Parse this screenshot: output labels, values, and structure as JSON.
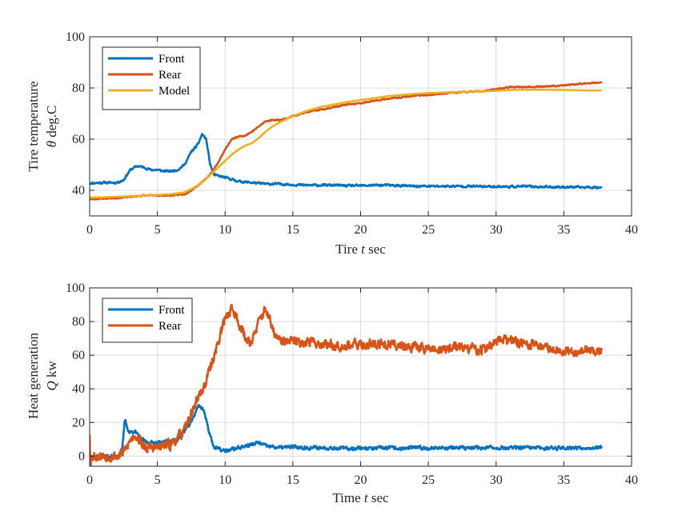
{
  "colors": {
    "front": "#0072BD",
    "rear": "#D95319",
    "model": "#EDB120"
  },
  "chart_data": [
    {
      "type": "line",
      "ylabel_line1": "Tire temperature",
      "ylabel_sym": "θ",
      "ylabel_unit": "deg.C",
      "xlabel_prefix": "Tire",
      "xlabel_sym": "t",
      "xlabel_unit": "sec",
      "xlim": [
        0,
        40
      ],
      "ylim": [
        30,
        100
      ],
      "xticks": [
        0,
        5,
        10,
        15,
        20,
        25,
        30,
        35,
        40
      ],
      "yticks": [
        40,
        60,
        80,
        100
      ],
      "grid": true,
      "legend": [
        "Front",
        "Rear",
        "Model"
      ],
      "legend_location": "top-left",
      "series": [
        {
          "name": "Front",
          "color": "#0072BD",
          "x": [
            0,
            1,
            2,
            2.5,
            3,
            3.5,
            4,
            4.5,
            5,
            5.5,
            6,
            6.5,
            7,
            7.5,
            8,
            8.3,
            8.6,
            8.9,
            9.2,
            9.6,
            10,
            11,
            12,
            13,
            14,
            15,
            16,
            17,
            18,
            19,
            20,
            21,
            22,
            23,
            24,
            25,
            26,
            27,
            28,
            29,
            30,
            31,
            32,
            33,
            34,
            35,
            36,
            37,
            37.8
          ],
          "y": [
            42.8,
            43,
            43,
            44,
            48,
            49.5,
            49,
            48,
            48,
            47.5,
            47.5,
            48,
            50,
            55,
            58,
            62,
            60,
            50,
            46,
            45.5,
            45,
            43.5,
            43,
            42.5,
            42.5,
            42.2,
            42,
            42,
            42,
            41.8,
            41.8,
            42,
            42,
            41.8,
            41.6,
            41.6,
            41.6,
            41.6,
            41.6,
            41.5,
            41.5,
            41.4,
            41.6,
            41.4,
            41.3,
            41.3,
            41.2,
            41.2,
            41.2
          ],
          "noise": 0.6,
          "seed": 11
        },
        {
          "name": "Rear",
          "color": "#D95319",
          "x": [
            0,
            1,
            2,
            3,
            4,
            5,
            6,
            7,
            7.5,
            8,
            8.5,
            9,
            9.5,
            10,
            10.5,
            11,
            11.5,
            12,
            12.5,
            13,
            13.5,
            14,
            14.5,
            15,
            16,
            17,
            18,
            19,
            20,
            21,
            22,
            23,
            24,
            25,
            26,
            27,
            28,
            29,
            30,
            31,
            32,
            33,
            34,
            35,
            36,
            37,
            37.8
          ],
          "y": [
            36.5,
            36.8,
            37,
            37.5,
            38,
            38,
            38,
            38.5,
            40,
            42,
            44,
            47,
            51,
            56,
            60,
            61,
            61.5,
            63,
            65,
            67,
            67.5,
            67.5,
            68,
            69,
            70.5,
            71.5,
            72.5,
            73.5,
            74,
            75,
            75.8,
            76.3,
            77,
            77.3,
            77.8,
            78.3,
            78.5,
            78.7,
            79.5,
            80.3,
            80.3,
            80.5,
            80.7,
            81,
            81.5,
            82,
            82
          ],
          "noise": 0.35,
          "seed": 23
        },
        {
          "name": "Model",
          "color": "#EDB120",
          "x": [
            0,
            1,
            2,
            3,
            4,
            5,
            6,
            7,
            7.5,
            8,
            8.5,
            9,
            9.5,
            10,
            10.5,
            11,
            11.5,
            12,
            12.5,
            13,
            13.5,
            14,
            15,
            16,
            17,
            18,
            19,
            20,
            21,
            22,
            23,
            24,
            25,
            26,
            27,
            28,
            29,
            30,
            31,
            32,
            33,
            34,
            35,
            36,
            37,
            37.8
          ],
          "y": [
            37.2,
            37.3,
            37.5,
            37.7,
            38,
            38.2,
            38.5,
            39.2,
            40.5,
            42,
            44,
            46.5,
            49,
            51.5,
            54,
            56,
            57.5,
            58.5,
            60.5,
            63,
            65,
            66.5,
            69,
            71,
            72.5,
            73.5,
            74.5,
            75.3,
            76,
            76.8,
            77.3,
            77.7,
            78,
            78.2,
            78.4,
            78.5,
            78.7,
            78.9,
            79.2,
            79.3,
            79.3,
            79.3,
            79.2,
            79.1,
            79,
            79
          ],
          "noise": 0,
          "seed": 0
        }
      ]
    },
    {
      "type": "line",
      "ylabel_line1": "Heat generation",
      "ylabel_sym": "Q",
      "ylabel_unit": "kw",
      "xlabel_prefix": "Time",
      "xlabel_sym": "t",
      "xlabel_unit": "sec",
      "xlim": [
        0,
        40
      ],
      "ylim": [
        -6,
        100
      ],
      "xticks": [
        0,
        5,
        10,
        15,
        20,
        25,
        30,
        35,
        40
      ],
      "yticks": [
        0,
        20,
        40,
        60,
        80,
        100
      ],
      "grid": true,
      "legend": [
        "Front",
        "Rear"
      ],
      "legend_location": "top-left",
      "series": [
        {
          "name": "Front",
          "color": "#0072BD",
          "x": [
            0,
            0.3,
            1,
            2,
            2.4,
            2.6,
            2.9,
            3.3,
            3.8,
            4.3,
            5,
            5.5,
            6,
            6.5,
            7,
            7.5,
            8,
            8.4,
            8.8,
            9.2,
            9.6,
            10,
            11,
            12,
            12.5,
            13,
            14,
            15,
            16,
            17,
            18,
            19,
            20,
            21,
            22,
            23,
            24,
            25,
            26,
            27,
            28,
            29,
            30,
            31,
            32,
            33,
            34,
            35,
            36,
            37,
            37.8
          ],
          "y": [
            0,
            0,
            0,
            0,
            3,
            22,
            14,
            15,
            10,
            8,
            8,
            8.5,
            9,
            10,
            15,
            20,
            30,
            28,
            15,
            5,
            4,
            3,
            5,
            7,
            8,
            6,
            5,
            5.5,
            5,
            5,
            5,
            4.5,
            5,
            4.5,
            5,
            4.5,
            5,
            4.8,
            5,
            5,
            4.8,
            5,
            5,
            4.8,
            5,
            4.8,
            4.8,
            5,
            5,
            5,
            5
          ],
          "noise": 1.6,
          "seed": 37
        },
        {
          "name": "Rear",
          "color": "#D95319",
          "x": [
            0,
            0.05,
            0.15,
            0.3,
            1,
            2,
            2.5,
            3,
            3.3,
            3.7,
            4,
            4.5,
            5,
            6,
            7,
            7.5,
            8,
            8.5,
            9,
            9.5,
            10,
            10.5,
            11,
            11.5,
            12,
            12.5,
            13,
            13.5,
            14,
            15,
            16,
            17,
            18,
            19,
            20,
            21,
            22,
            23,
            24,
            25,
            26,
            27,
            28,
            29,
            30,
            31,
            32,
            33,
            34,
            35,
            36,
            37,
            37.8
          ],
          "y": [
            14,
            -5,
            0,
            0,
            0,
            0,
            2,
            9,
            13,
            10,
            5,
            5,
            5,
            7,
            15,
            25,
            35,
            42,
            55,
            68,
            82,
            88,
            80,
            70,
            68,
            80,
            88,
            75,
            68,
            68,
            68,
            67,
            66,
            66,
            66,
            67,
            66,
            66,
            65,
            64,
            63,
            65,
            64,
            63,
            68,
            69,
            67,
            66,
            64,
            63,
            62,
            63,
            62
          ],
          "noise": 4.5,
          "seed": 53
        }
      ]
    }
  ]
}
